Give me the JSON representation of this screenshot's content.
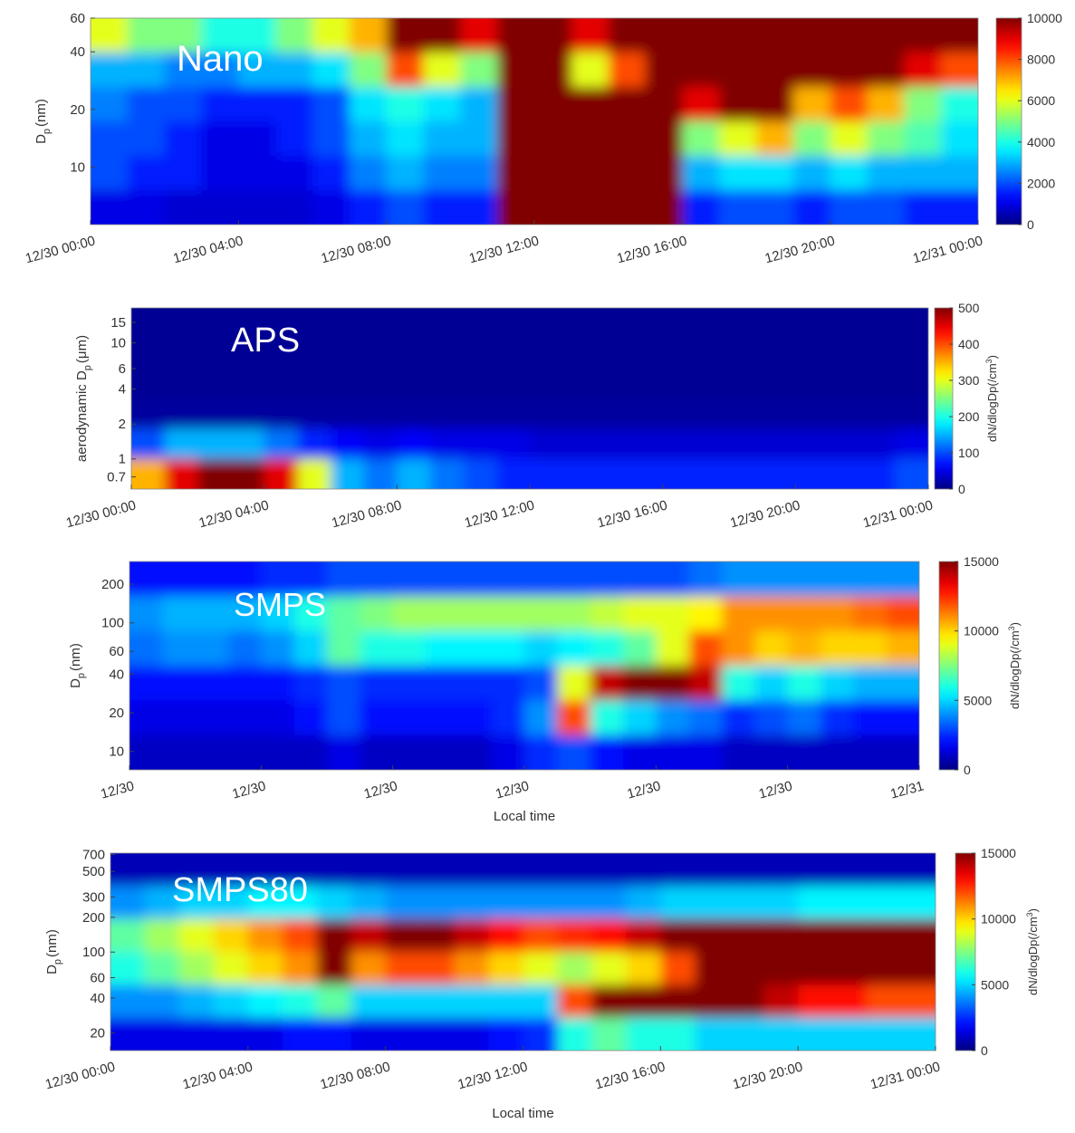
{
  "chart_data": [
    {
      "type": "heatmap",
      "annotation": "Nano",
      "colormap": "jet",
      "xlim": [
        0,
        24
      ],
      "xticks": [
        {
          "value": 0,
          "label": "12/30 00:00"
        },
        {
          "value": 4,
          "label": "12/30 04:00"
        },
        {
          "value": 8,
          "label": "12/30 08:00"
        },
        {
          "value": 12,
          "label": "12/30 12:00"
        },
        {
          "value": 16,
          "label": "12/30 16:00"
        },
        {
          "value": 20,
          "label": "12/30 20:00"
        },
        {
          "value": 24,
          "label": "12/31 00:00"
        }
      ],
      "ylim": [
        5,
        60
      ],
      "ylog": true,
      "yticks": [
        10,
        20,
        40,
        60
      ],
      "ylabel": {
        "main": "D",
        "sub": "p",
        "unit": "(nm)"
      },
      "zlim": [
        0,
        10000
      ],
      "zticks": [
        0,
        2000,
        4000,
        6000,
        8000,
        10000
      ],
      "z": [
        [
          6000,
          5000,
          5000,
          4000,
          4000,
          5000,
          6000,
          7000,
          10000,
          10000,
          9000,
          10000,
          10000,
          9000,
          10000,
          10000,
          10000,
          10000,
          10000,
          10000,
          10000,
          10000,
          10000,
          10000
        ],
        [
          3000,
          3000,
          2500,
          2500,
          3000,
          3000,
          3500,
          5000,
          8000,
          6000,
          5000,
          10000,
          10000,
          6000,
          8000,
          10000,
          10000,
          10000,
          10000,
          10000,
          10000,
          10000,
          9000,
          8000
        ],
        [
          2500,
          2000,
          2000,
          1500,
          1500,
          1500,
          2000,
          3500,
          4000,
          3500,
          3000,
          10000,
          10000,
          10000,
          10000,
          10000,
          9000,
          10000,
          10000,
          7000,
          8000,
          7000,
          5000,
          4000
        ],
        [
          2000,
          2000,
          1500,
          1000,
          1000,
          1500,
          2000,
          3000,
          3500,
          3000,
          3000,
          10000,
          10000,
          10000,
          10000,
          10000,
          5000,
          6000,
          7000,
          5000,
          6000,
          5000,
          4500,
          3500
        ],
        [
          2000,
          1500,
          1500,
          1000,
          1000,
          1000,
          1500,
          2500,
          3000,
          2500,
          2500,
          10000,
          10000,
          10000,
          10000,
          10000,
          3000,
          3500,
          3500,
          3000,
          3500,
          3000,
          3000,
          3000
        ],
        [
          1000,
          1000,
          800,
          800,
          800,
          800,
          1000,
          1500,
          2000,
          1500,
          1500,
          10000,
          10000,
          10000,
          10000,
          10000,
          1500,
          2000,
          2000,
          1500,
          2000,
          2000,
          1500,
          1500
        ]
      ]
    },
    {
      "type": "heatmap",
      "annotation": "APS",
      "colormap": "jet",
      "xlim": [
        0,
        24
      ],
      "xticks": [
        {
          "value": 0,
          "label": "12/30 00:00"
        },
        {
          "value": 4,
          "label": "12/30 04:00"
        },
        {
          "value": 8,
          "label": "12/30 08:00"
        },
        {
          "value": 12,
          "label": "12/30 12:00"
        },
        {
          "value": 16,
          "label": "12/30 16:00"
        },
        {
          "value": 20,
          "label": "12/30 20:00"
        },
        {
          "value": 24,
          "label": "12/31 00:00"
        }
      ],
      "ylim": [
        0.55,
        20
      ],
      "ylog": true,
      "yticks": [
        0.7,
        1,
        2,
        4,
        6,
        10,
        15
      ],
      "ylabel": {
        "main": "aerodynamic D",
        "sub": "p",
        "unit": "(μm)"
      },
      "zlim": [
        0,
        500
      ],
      "zticks": [
        0,
        100,
        200,
        300,
        400,
        500
      ],
      "colorbar_label": {
        "main": "dN/dlogDp(/cm",
        "sup": "3",
        "end": ")"
      },
      "z": [
        [
          10,
          10,
          10,
          10,
          10,
          10,
          10,
          10,
          10,
          10,
          10,
          10,
          10,
          10,
          10,
          10,
          10,
          10,
          10,
          10,
          10,
          10,
          10,
          10
        ],
        [
          10,
          10,
          10,
          10,
          10,
          10,
          10,
          10,
          10,
          10,
          10,
          10,
          10,
          10,
          10,
          10,
          10,
          10,
          10,
          10,
          10,
          10,
          10,
          10
        ],
        [
          10,
          10,
          10,
          10,
          10,
          10,
          10,
          10,
          10,
          10,
          10,
          10,
          10,
          10,
          10,
          10,
          10,
          10,
          10,
          10,
          10,
          10,
          10,
          10
        ],
        [
          15,
          15,
          15,
          15,
          15,
          15,
          15,
          15,
          15,
          15,
          15,
          15,
          15,
          15,
          15,
          15,
          15,
          15,
          15,
          15,
          15,
          15,
          15,
          15
        ],
        [
          100,
          150,
          150,
          150,
          120,
          80,
          60,
          50,
          60,
          50,
          50,
          50,
          40,
          40,
          40,
          40,
          40,
          40,
          40,
          40,
          40,
          40,
          40,
          50
        ],
        [
          350,
          450,
          500,
          500,
          450,
          300,
          150,
          120,
          150,
          120,
          100,
          80,
          80,
          80,
          80,
          80,
          80,
          80,
          80,
          80,
          80,
          80,
          80,
          100
        ]
      ]
    },
    {
      "type": "heatmap",
      "annotation": "SMPS",
      "colormap": "jet",
      "xlim": [
        0,
        24
      ],
      "xticks": [
        {
          "value": 0,
          "label": "12/30"
        },
        {
          "value": 4,
          "label": "12/30"
        },
        {
          "value": 8,
          "label": "12/30"
        },
        {
          "value": 12,
          "label": "12/30"
        },
        {
          "value": 16,
          "label": "12/30"
        },
        {
          "value": 20,
          "label": "12/30"
        },
        {
          "value": 24,
          "label": "12/31"
        }
      ],
      "xlabel": "Local time",
      "ylim": [
        7.2,
        300
      ],
      "ylog": true,
      "yticks": [
        10,
        20,
        40,
        60,
        100,
        200
      ],
      "ylabel": {
        "main": "D",
        "sub": "p",
        "unit": "(nm)"
      },
      "zlim": [
        0,
        15000
      ],
      "zticks": [
        0,
        5000,
        10000,
        15000
      ],
      "colorbar_label": {
        "main": "dN/dlogDp(/cm",
        "sup": "3",
        "end": ")"
      },
      "z": [
        [
          2000,
          2000,
          2000,
          2000,
          2500,
          2500,
          3000,
          3000,
          3000,
          3000,
          3000,
          3000,
          3000,
          3000,
          3000,
          3000,
          3000,
          3500,
          4000,
          4000,
          4000,
          4000,
          4000,
          4000
        ],
        [
          4000,
          4500,
          4500,
          4500,
          5000,
          6000,
          7000,
          7500,
          8000,
          8000,
          8000,
          8000,
          8000,
          8000,
          8500,
          9000,
          9000,
          9500,
          11000,
          11000,
          11000,
          11000,
          11500,
          12000
        ],
        [
          3500,
          4000,
          4000,
          3500,
          4000,
          5000,
          7000,
          6000,
          6000,
          5500,
          5500,
          5500,
          5000,
          5500,
          6000,
          7000,
          9000,
          12000,
          11000,
          10000,
          10500,
          10000,
          10000,
          10500
        ],
        [
          2000,
          2000,
          2000,
          2000,
          2000,
          2500,
          3000,
          2500,
          2500,
          2500,
          2500,
          2500,
          3000,
          9000,
          14000,
          15000,
          15000,
          14000,
          6000,
          5000,
          6000,
          5000,
          4500,
          4500
        ],
        [
          1500,
          1500,
          1500,
          1500,
          1500,
          2000,
          3000,
          2000,
          2000,
          2000,
          2000,
          2500,
          4000,
          12000,
          6000,
          5000,
          4000,
          3500,
          2500,
          3000,
          3500,
          2500,
          2000,
          2000
        ],
        [
          1000,
          1000,
          1000,
          1000,
          1000,
          1000,
          1500,
          1000,
          1000,
          1000,
          1000,
          1500,
          2500,
          3000,
          2000,
          1500,
          1500,
          1500,
          1000,
          1000,
          1000,
          1000,
          1000,
          1000
        ]
      ]
    },
    {
      "type": "heatmap",
      "annotation": "SMPS80",
      "colormap": "jet",
      "xlim": [
        0,
        24
      ],
      "xticks": [
        {
          "value": 0,
          "label": "12/30 00:00"
        },
        {
          "value": 4,
          "label": "12/30 04:00"
        },
        {
          "value": 8,
          "label": "12/30 08:00"
        },
        {
          "value": 12,
          "label": "12/30 12:00"
        },
        {
          "value": 16,
          "label": "12/30 16:00"
        },
        {
          "value": 20,
          "label": "12/30 20:00"
        },
        {
          "value": 24,
          "label": "12/31 00:00"
        }
      ],
      "xlabel": "Local time",
      "ylim": [
        14,
        720
      ],
      "ylog": true,
      "yticks": [
        20,
        40,
        60,
        100,
        200,
        300,
        500,
        700
      ],
      "ylabel": {
        "main": "D",
        "sub": "p",
        "unit": "(nm)"
      },
      "zlim": [
        0,
        15000
      ],
      "zticks": [
        0,
        5000,
        10000,
        15000
      ],
      "colorbar_label": {
        "main": "dN/dlogDp(/cm",
        "sup": "3",
        "end": ")"
      },
      "z": [
        [
          800,
          800,
          800,
          800,
          800,
          800,
          800,
          800,
          800,
          800,
          800,
          800,
          800,
          800,
          800,
          800,
          800,
          800,
          800,
          800,
          800,
          800,
          800,
          800
        ],
        [
          4000,
          4500,
          5000,
          5000,
          5500,
          5500,
          5000,
          4500,
          4000,
          4000,
          4000,
          4000,
          4000,
          4000,
          4000,
          4500,
          5000,
          5000,
          5000,
          5000,
          5500,
          5500,
          5500,
          5500
        ],
        [
          7000,
          8000,
          9000,
          10000,
          11000,
          12000,
          15000,
          14000,
          15000,
          15000,
          14000,
          13000,
          12000,
          12500,
          13000,
          14000,
          15000,
          15000,
          15000,
          15000,
          15000,
          15000,
          15000,
          15000
        ],
        [
          6000,
          7000,
          8000,
          9000,
          10000,
          11000,
          15000,
          11000,
          12000,
          12000,
          11000,
          10000,
          9000,
          8000,
          9000,
          10000,
          12000,
          15000,
          15000,
          15000,
          15000,
          15000,
          15000,
          15000
        ],
        [
          4000,
          4000,
          4500,
          5000,
          5500,
          6000,
          7000,
          5000,
          5000,
          5000,
          5000,
          5000,
          5000,
          12000,
          15000,
          15000,
          15000,
          15000,
          15000,
          14000,
          13000,
          13000,
          12000,
          12000
        ],
        [
          1500,
          1500,
          1500,
          1500,
          1500,
          2000,
          2000,
          1500,
          1500,
          1500,
          1500,
          2000,
          2500,
          6000,
          7000,
          6000,
          6000,
          5000,
          5000,
          5000,
          5000,
          5000,
          5000,
          5000
        ]
      ]
    }
  ]
}
